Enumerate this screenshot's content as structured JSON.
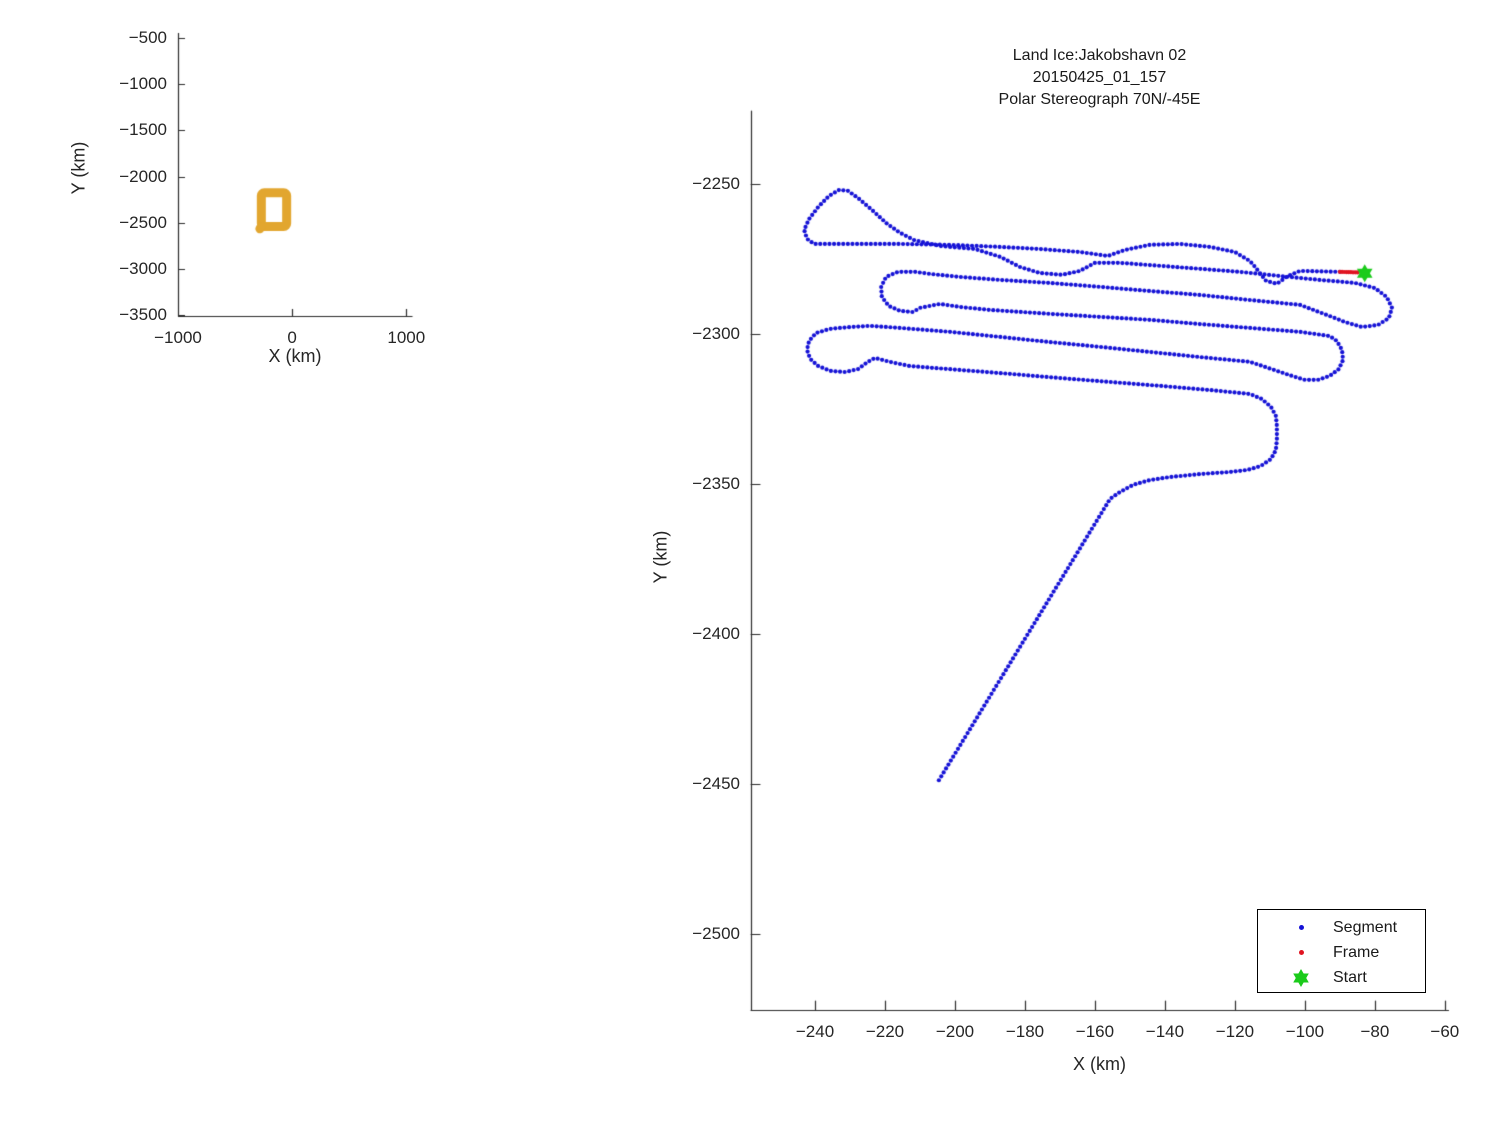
{
  "figure_background": "#ffffff",
  "chart_data": [
    {
      "type": "line",
      "name": "overview-flight-map",
      "title": "",
      "xlabel": "X (km)",
      "ylabel": "Y (km)",
      "x_ticks": [
        -1000,
        0,
        1000
      ],
      "y_ticks": [
        -500,
        -1000,
        -1500,
        -2000,
        -2500,
        -3000,
        -3500
      ],
      "xlim": [
        -1000,
        1050
      ],
      "ylim": [
        -3510,
        -446
      ],
      "grid": false,
      "series": [
        {
          "name": "flight-track-extent",
          "color": "#E2A62F",
          "stroke_px": 9,
          "rect_x": [
            -270,
            -48
          ],
          "rect_y": [
            -2175,
            -2540
          ],
          "tail": [
            [
              -270,
              -2540
            ],
            [
              -283,
              -2566
            ]
          ]
        }
      ]
    },
    {
      "type": "scatter",
      "name": "segment-trajectory",
      "title_lines": [
        "Land Ice:Jakobshavn 02",
        "20150425_01_157",
        "Polar Stereograph 70N/-45E"
      ],
      "xlabel": "X (km)",
      "ylabel": "Y (km)",
      "x_ticks": [
        -240,
        -220,
        -200,
        -180,
        -160,
        -140,
        -120,
        -100,
        -80,
        -60
      ],
      "y_ticks": [
        -2250,
        -2300,
        -2350,
        -2400,
        -2450,
        -2500
      ],
      "xlim": [
        -258.3,
        -59.1
      ],
      "ylim": [
        -2525.3,
        -2225.7
      ],
      "grid": false,
      "legend": {
        "position": "bottom-right",
        "items": [
          {
            "label": "Segment",
            "marker": "dot",
            "color": "#1512D6"
          },
          {
            "label": "Frame",
            "marker": "dot",
            "color": "#E01420"
          },
          {
            "label": "Start",
            "marker": "hexagram",
            "color": "#1BCB1B"
          }
        ]
      },
      "series": [
        {
          "name": "Segment",
          "marker": "dot",
          "color": "#1512D6",
          "dot_radius": 2.1,
          "dot_spacing": 4.6,
          "path": [
            [
              -90.0,
              -2279.3
            ],
            [
              -101.4,
              -2279.0
            ],
            [
              -104.9,
              -2280.7
            ],
            [
              -108.0,
              -2283.3
            ],
            [
              -111.1,
              -2282.3
            ],
            [
              -114.0,
              -2278.0
            ],
            [
              -115.7,
              -2275.7
            ],
            [
              -120.0,
              -2272.7
            ],
            [
              -127.1,
              -2271.0
            ],
            [
              -135.7,
              -2270.0
            ],
            [
              -144.3,
              -2270.3
            ],
            [
              -151.4,
              -2272.0
            ],
            [
              -156.3,
              -2274.0
            ],
            [
              -164.3,
              -2272.7
            ],
            [
              -175.7,
              -2271.7
            ],
            [
              -187.1,
              -2271.0
            ],
            [
              -201.4,
              -2270.3
            ],
            [
              -215.7,
              -2270.0
            ],
            [
              -230.0,
              -2270.0
            ],
            [
              -240.3,
              -2270.0
            ],
            [
              -242.3,
              -2268.3
            ],
            [
              -243.1,
              -2265.3
            ],
            [
              -241.7,
              -2261.7
            ],
            [
              -239.1,
              -2257.7
            ],
            [
              -236.0,
              -2254.0
            ],
            [
              -233.1,
              -2252.0
            ],
            [
              -230.6,
              -2252.3
            ],
            [
              -227.7,
              -2254.7
            ],
            [
              -223.7,
              -2258.7
            ],
            [
              -219.4,
              -2263.3
            ],
            [
              -215.7,
              -2266.3
            ],
            [
              -211.7,
              -2268.7
            ],
            [
              -204.3,
              -2270.7
            ],
            [
              -194.3,
              -2271.7
            ],
            [
              -187.1,
              -2274.3
            ],
            [
              -181.4,
              -2277.7
            ],
            [
              -175.7,
              -2279.7
            ],
            [
              -169.4,
              -2280.3
            ],
            [
              -164.3,
              -2279.0
            ],
            [
              -160.0,
              -2276.3
            ],
            [
              -152.9,
              -2276.3
            ],
            [
              -141.4,
              -2277.3
            ],
            [
              -130.0,
              -2278.3
            ],
            [
              -118.6,
              -2279.3
            ],
            [
              -107.1,
              -2280.7
            ],
            [
              -95.7,
              -2282.0
            ],
            [
              -85.7,
              -2283.0
            ],
            [
              -80.0,
              -2284.7
            ],
            [
              -76.6,
              -2287.7
            ],
            [
              -75.1,
              -2291.3
            ],
            [
              -76.0,
              -2294.7
            ],
            [
              -79.1,
              -2297.0
            ],
            [
              -83.7,
              -2297.7
            ],
            [
              -88.6,
              -2296.0
            ],
            [
              -91.4,
              -2294.7
            ],
            [
              -101.4,
              -2290.3
            ],
            [
              -115.7,
              -2288.7
            ],
            [
              -130.0,
              -2287.0
            ],
            [
              -144.3,
              -2285.7
            ],
            [
              -158.6,
              -2284.3
            ],
            [
              -172.9,
              -2283.0
            ],
            [
              -187.1,
              -2282.0
            ],
            [
              -198.6,
              -2281.0
            ],
            [
              -207.1,
              -2280.0
            ],
            [
              -211.4,
              -2279.3
            ],
            [
              -216.3,
              -2279.3
            ],
            [
              -219.7,
              -2281.0
            ],
            [
              -221.1,
              -2284.3
            ],
            [
              -220.9,
              -2287.7
            ],
            [
              -218.9,
              -2290.7
            ],
            [
              -215.7,
              -2292.3
            ],
            [
              -212.0,
              -2292.7
            ],
            [
              -210.0,
              -2291.3
            ],
            [
              -204.3,
              -2290.0
            ],
            [
              -198.6,
              -2291.0
            ],
            [
              -190.0,
              -2292.0
            ],
            [
              -172.9,
              -2293.3
            ],
            [
              -158.6,
              -2294.3
            ],
            [
              -144.3,
              -2295.3
            ],
            [
              -130.0,
              -2296.7
            ],
            [
              -115.7,
              -2298.0
            ],
            [
              -101.4,
              -2299.3
            ],
            [
              -92.9,
              -2300.7
            ],
            [
              -90.9,
              -2302.3
            ],
            [
              -89.4,
              -2305.3
            ],
            [
              -89.1,
              -2308.7
            ],
            [
              -90.3,
              -2311.7
            ],
            [
              -92.9,
              -2314.0
            ],
            [
              -96.3,
              -2315.3
            ],
            [
              -100.0,
              -2315.3
            ],
            [
              -102.9,
              -2314.3
            ],
            [
              -115.7,
              -2309.3
            ],
            [
              -130.0,
              -2307.7
            ],
            [
              -144.3,
              -2306.0
            ],
            [
              -158.6,
              -2304.3
            ],
            [
              -172.9,
              -2302.7
            ],
            [
              -187.1,
              -2301.0
            ],
            [
              -201.4,
              -2299.3
            ],
            [
              -215.7,
              -2298.0
            ],
            [
              -224.3,
              -2297.3
            ],
            [
              -230.0,
              -2297.7
            ],
            [
              -235.7,
              -2298.3
            ],
            [
              -239.7,
              -2299.7
            ],
            [
              -241.7,
              -2302.3
            ],
            [
              -242.3,
              -2305.3
            ],
            [
              -241.4,
              -2308.3
            ],
            [
              -239.1,
              -2310.7
            ],
            [
              -235.7,
              -2312.3
            ],
            [
              -231.4,
              -2312.7
            ],
            [
              -227.7,
              -2311.7
            ],
            [
              -224.9,
              -2309.3
            ],
            [
              -222.9,
              -2308.0
            ],
            [
              -218.6,
              -2309.3
            ],
            [
              -212.9,
              -2310.7
            ],
            [
              -198.6,
              -2312.0
            ],
            [
              -184.3,
              -2313.3
            ],
            [
              -170.0,
              -2314.7
            ],
            [
              -155.7,
              -2316.0
            ],
            [
              -141.4,
              -2317.3
            ],
            [
              -127.1,
              -2318.7
            ],
            [
              -115.7,
              -2320.0
            ],
            [
              -112.3,
              -2321.7
            ],
            [
              -109.7,
              -2324.3
            ],
            [
              -108.3,
              -2327.3
            ],
            [
              -108.0,
              -2330.7
            ],
            [
              -108.0,
              -2335.3
            ],
            [
              -108.3,
              -2338.7
            ],
            [
              -109.7,
              -2341.7
            ],
            [
              -112.6,
              -2344.0
            ],
            [
              -116.3,
              -2345.3
            ],
            [
              -121.4,
              -2346.0
            ],
            [
              -130.0,
              -2346.7
            ],
            [
              -138.6,
              -2347.7
            ],
            [
              -144.3,
              -2348.7
            ],
            [
              -149.1,
              -2350.3
            ],
            [
              -152.9,
              -2352.7
            ],
            [
              -155.7,
              -2355.0
            ],
            [
              -204.9,
              -2449.3
            ]
          ]
        },
        {
          "name": "Frame",
          "marker": "dot",
          "color": "#E01420",
          "dot_radius": 2.1,
          "dot_spacing": 2.2,
          "path": [
            [
              -90.0,
              -2279.3
            ],
            [
              -84.9,
              -2279.5
            ]
          ]
        },
        {
          "name": "Start",
          "marker": "hexagram",
          "color": "#1BCB1B",
          "size": 9,
          "point": [
            -82.9,
            -2279.8
          ]
        }
      ]
    }
  ]
}
